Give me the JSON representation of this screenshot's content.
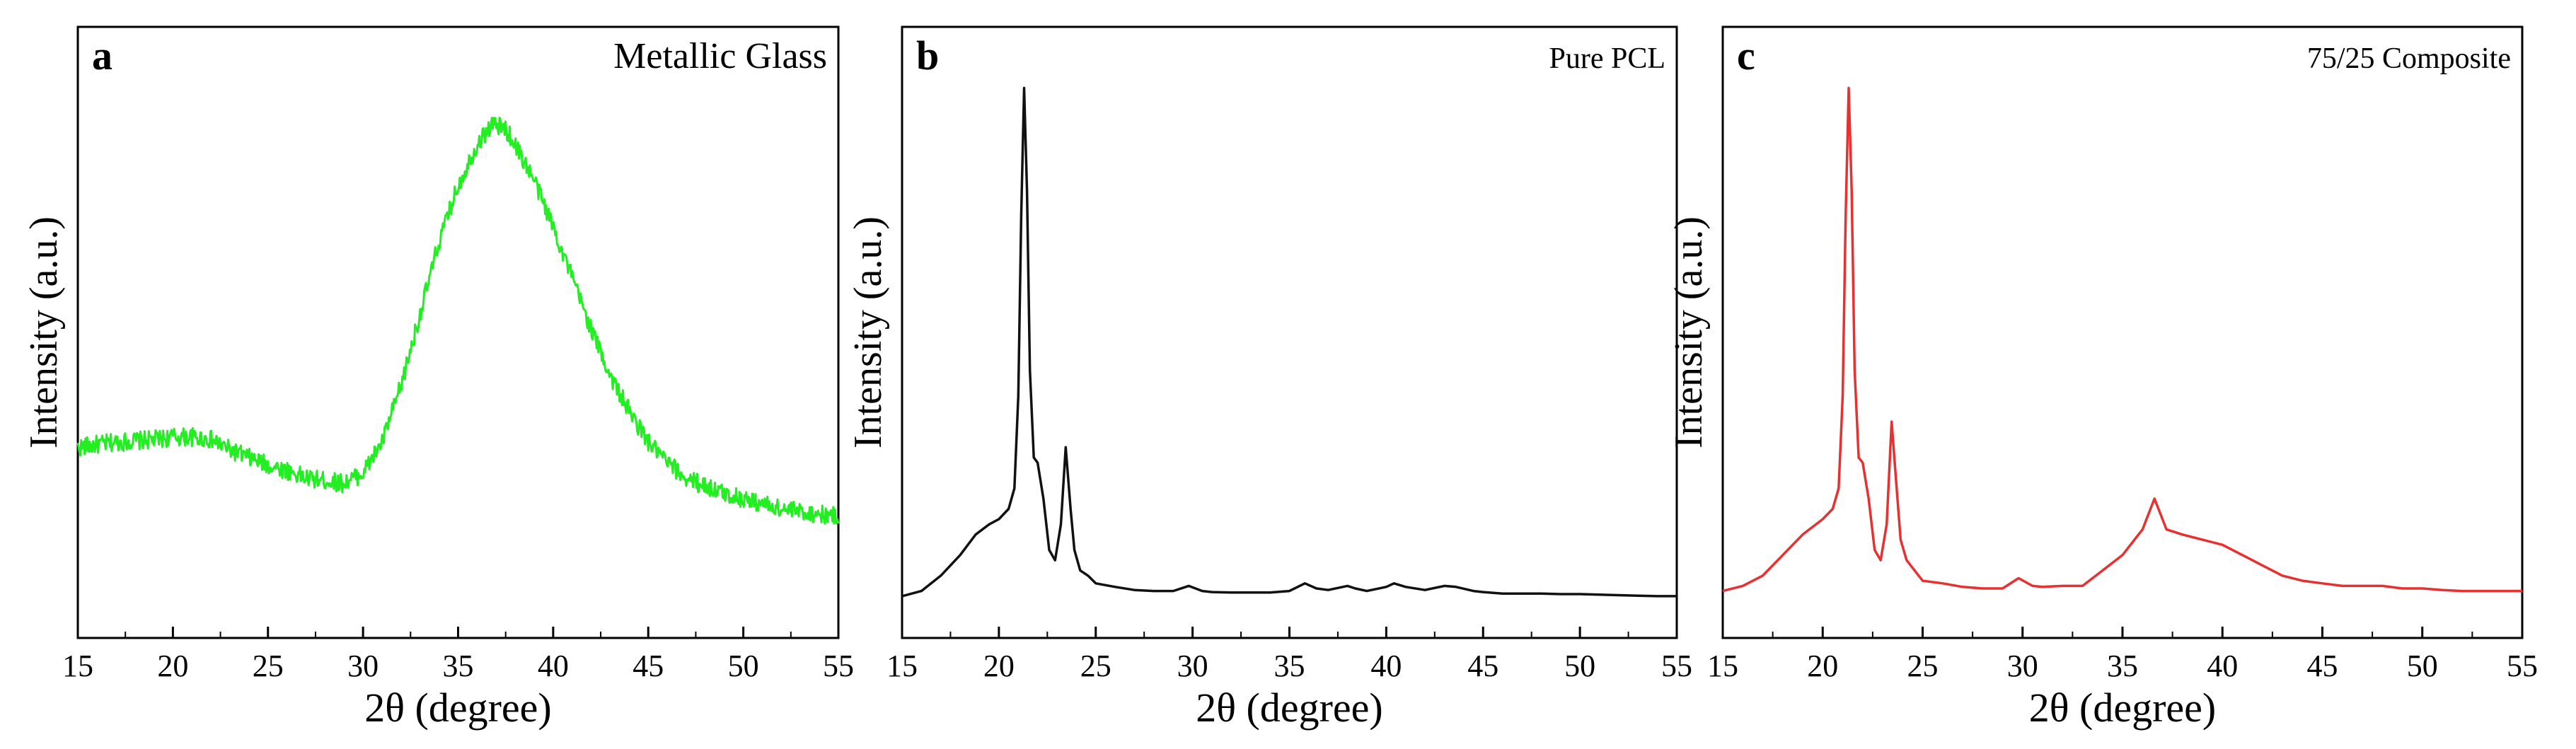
{
  "chart_data": [
    {
      "type": "line",
      "panel_letter": "a",
      "title": "Metallic Glass",
      "xlabel": "2θ (degree)",
      "ylabel": "Intensity (a.u.)",
      "xlim": [
        15,
        55
      ],
      "ylim": [
        0,
        1
      ],
      "xticks": [
        "15",
        "20",
        "25",
        "30",
        "35",
        "40",
        "45",
        "50",
        "55"
      ],
      "color": "#22ee22",
      "noise": 0.018,
      "series": [
        {
          "x": [
            15,
            17,
            19,
            20,
            21,
            22,
            23,
            24,
            25,
            26,
            27,
            28,
            29,
            30,
            31,
            32,
            33,
            34,
            35,
            36,
            36.8,
            37.5,
            38,
            39,
            40,
            41,
            42,
            43,
            44,
            45,
            46,
            47,
            48,
            49,
            50,
            51,
            52,
            53,
            54,
            55
          ],
          "y": [
            0.3,
            0.31,
            0.315,
            0.32,
            0.32,
            0.315,
            0.295,
            0.28,
            0.265,
            0.255,
            0.24,
            0.235,
            0.23,
            0.25,
            0.31,
            0.42,
            0.56,
            0.7,
            0.81,
            0.89,
            0.93,
            0.92,
            0.89,
            0.82,
            0.73,
            0.63,
            0.53,
            0.44,
            0.37,
            0.31,
            0.27,
            0.24,
            0.225,
            0.21,
            0.2,
            0.19,
            0.18,
            0.175,
            0.17,
            0.165
          ]
        }
      ]
    },
    {
      "type": "line",
      "panel_letter": "b",
      "title": "Pure PCL",
      "xlabel": "2θ (degree)",
      "ylabel": "Intensity (a.u.)",
      "xlim": [
        15,
        55
      ],
      "ylim": [
        0,
        1
      ],
      "xticks": [
        "15",
        "20",
        "25",
        "30",
        "35",
        "40",
        "45",
        "50",
        "55"
      ],
      "color": "#111111",
      "noise": 0,
      "series": [
        {
          "x": [
            15,
            16,
            17,
            18,
            18.8,
            19.5,
            20,
            20.5,
            20.8,
            21.0,
            21.15,
            21.3,
            21.45,
            21.6,
            21.8,
            22.0,
            22.3,
            22.6,
            22.9,
            23.2,
            23.45,
            23.7,
            23.9,
            24.2,
            24.6,
            25,
            26,
            27,
            28,
            29,
            29.8,
            30.5,
            31,
            32,
            33,
            34,
            35,
            35.8,
            36.4,
            37,
            38,
            38.4,
            39,
            40,
            40.4,
            41,
            42,
            43,
            43.6,
            44.5,
            45,
            46,
            47,
            48,
            49,
            50,
            51,
            52,
            53,
            54,
            55
          ],
          "y": [
            0.01,
            0.02,
            0.05,
            0.09,
            0.13,
            0.15,
            0.16,
            0.18,
            0.22,
            0.4,
            0.75,
            1.0,
            0.8,
            0.45,
            0.28,
            0.27,
            0.2,
            0.1,
            0.08,
            0.15,
            0.3,
            0.18,
            0.1,
            0.06,
            0.05,
            0.035,
            0.028,
            0.022,
            0.02,
            0.02,
            0.03,
            0.02,
            0.018,
            0.017,
            0.017,
            0.017,
            0.02,
            0.035,
            0.025,
            0.022,
            0.03,
            0.025,
            0.02,
            0.028,
            0.035,
            0.028,
            0.022,
            0.03,
            0.028,
            0.02,
            0.018,
            0.015,
            0.015,
            0.015,
            0.014,
            0.014,
            0.013,
            0.012,
            0.011,
            0.01,
            0.01
          ]
        }
      ]
    },
    {
      "type": "line",
      "panel_letter": "c",
      "title": "75/25 Composite",
      "xlabel": "2θ (degree)",
      "ylabel": "Intensity (a.u.)",
      "xlim": [
        15,
        55
      ],
      "ylim": [
        0,
        1
      ],
      "xticks": [
        "15",
        "20",
        "25",
        "30",
        "35",
        "40",
        "45",
        "50",
        "55"
      ],
      "color": "#e83030",
      "noise": 0,
      "series": [
        {
          "x": [
            15,
            16,
            17,
            18,
            19,
            20,
            20.5,
            20.8,
            21.0,
            21.15,
            21.3,
            21.45,
            21.6,
            21.8,
            22.0,
            22.3,
            22.6,
            22.9,
            23.2,
            23.45,
            23.7,
            23.9,
            24.2,
            24.6,
            25,
            26,
            27,
            28,
            29,
            29.8,
            30.5,
            31,
            32,
            33,
            34,
            35,
            36,
            36.6,
            37.2,
            38,
            39,
            40,
            41,
            42,
            43,
            44,
            45,
            46,
            47,
            48,
            49,
            50,
            51,
            52,
            53,
            54,
            55
          ],
          "y": [
            0.02,
            0.03,
            0.05,
            0.09,
            0.13,
            0.16,
            0.18,
            0.22,
            0.4,
            0.75,
            1.0,
            0.8,
            0.45,
            0.28,
            0.27,
            0.2,
            0.1,
            0.08,
            0.15,
            0.35,
            0.22,
            0.12,
            0.08,
            0.06,
            0.04,
            0.035,
            0.028,
            0.025,
            0.025,
            0.045,
            0.03,
            0.028,
            0.03,
            0.03,
            0.06,
            0.09,
            0.14,
            0.2,
            0.14,
            0.13,
            0.12,
            0.11,
            0.09,
            0.07,
            0.05,
            0.04,
            0.035,
            0.03,
            0.03,
            0.03,
            0.025,
            0.025,
            0.022,
            0.02,
            0.02,
            0.02,
            0.02
          ]
        }
      ]
    }
  ]
}
